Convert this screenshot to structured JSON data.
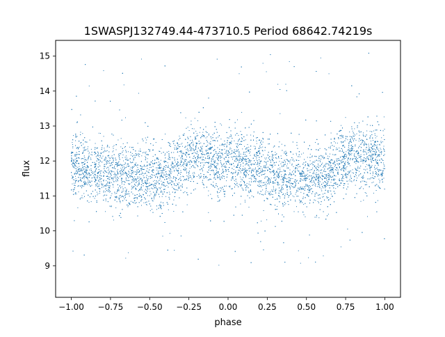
{
  "chart_data": {
    "type": "scatter",
    "title": "1SWASPJ132749.44-473710.5 Period 68642.74219s",
    "xlabel": "phase",
    "ylabel": "flux",
    "xlim": [
      -1.1,
      1.1
    ],
    "ylim": [
      8.1,
      15.45
    ],
    "xticks": [
      -1.0,
      -0.75,
      -0.5,
      -0.25,
      0.0,
      0.25,
      0.5,
      0.75,
      1.0
    ],
    "xtick_labels": [
      "−1.00",
      "−0.75",
      "−0.50",
      "−0.25",
      "0.00",
      "0.25",
      "0.50",
      "0.75",
      "1.00"
    ],
    "yticks": [
      9,
      10,
      11,
      12,
      13,
      14,
      15
    ],
    "ytick_labels": [
      "9",
      "10",
      "11",
      "12",
      "13",
      "14",
      "15"
    ],
    "grid": false,
    "legend": "none",
    "marker_color": "#1f77b4",
    "series": [
      {
        "phase": [
          -1.0,
          -0.9,
          -0.8,
          -0.7,
          -0.6,
          -0.5,
          -0.4,
          -0.3,
          -0.2,
          -0.1,
          0.0,
          0.1,
          0.2,
          0.3,
          0.4,
          0.5,
          0.6,
          0.7,
          0.8,
          0.9,
          1.0
        ],
        "flux_median": [
          11.85,
          11.75,
          11.7,
          11.6,
          11.55,
          11.5,
          11.55,
          11.9,
          12.2,
          12.0,
          11.9,
          11.85,
          11.8,
          11.65,
          11.55,
          11.45,
          11.5,
          11.9,
          12.15,
          12.1,
          12.0
        ],
        "flux_scatter": 0.45,
        "n_points": 9000
      }
    ]
  }
}
